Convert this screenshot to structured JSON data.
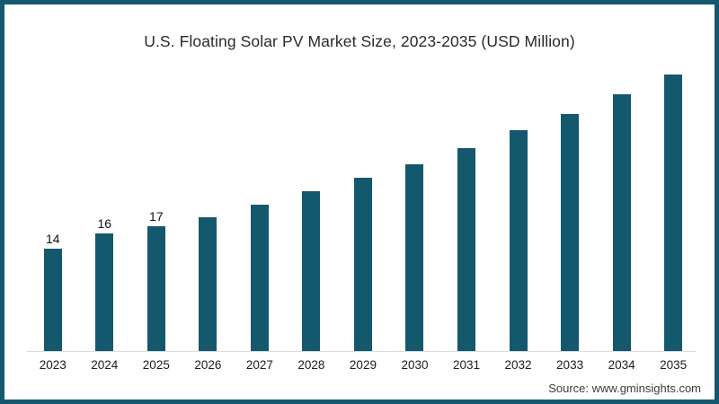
{
  "frame": {
    "border_color": "#14576E",
    "background": "#FFFFFF"
  },
  "title": "U.S. Floating Solar PV Market Size, 2023-2035 (USD Million)",
  "source": "Source: www.gminsights.com",
  "chart_data": {
    "type": "bar",
    "title": "U.S. Floating Solar PV Market Size, 2023-2035 (USD Million)",
    "categories": [
      "2023",
      "2024",
      "2025",
      "2026",
      "2027",
      "2028",
      "2029",
      "2030",
      "2031",
      "2032",
      "2033",
      "2034",
      "2035"
    ],
    "values": [
      14,
      16,
      17,
      18.3,
      20,
      21.8,
      23.7,
      25.5,
      27.7,
      30.2,
      32.4,
      35.1,
      37.7
    ],
    "data_labels": [
      "14",
      "16",
      "17",
      "",
      "",
      "",
      "",
      "",
      "",
      "",
      "",
      "",
      ""
    ],
    "xlabel": "",
    "ylabel": "",
    "ylim": [
      0,
      40
    ],
    "grid": false,
    "legend": false,
    "bar_color": "#14586D",
    "axis_line_color": "#DCDCDC"
  }
}
